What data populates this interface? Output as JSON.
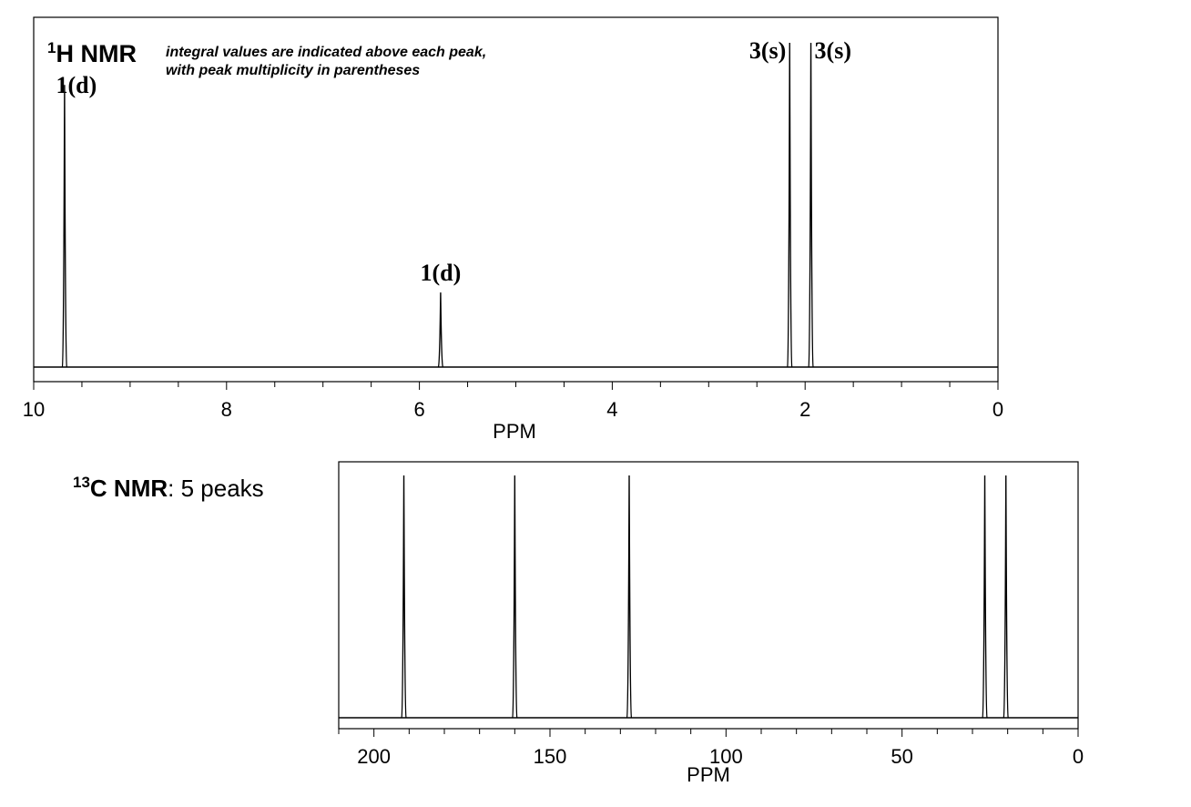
{
  "chart_data": [
    {
      "type": "line",
      "title_main": "H NMR",
      "title_sup": "1",
      "note_line1": "integral values are indicated above each peak,",
      "note_line2": "with peak multiplicity in parentheses",
      "xlabel": "PPM",
      "xlim": [
        10,
        0
      ],
      "x_ticks": [
        10,
        8,
        6,
        4,
        2,
        0
      ],
      "x_tick_labels": [
        "10",
        "8",
        "6",
        "4",
        "2",
        "0"
      ],
      "minor_tick_step": 0.5,
      "peaks": [
        {
          "ppm": 9.68,
          "height": 0.87,
          "label": "1(d)"
        },
        {
          "ppm": 5.78,
          "height": 0.23,
          "label": "1(d)"
        },
        {
          "ppm": 2.16,
          "height": 1.0,
          "label": "3(s)"
        },
        {
          "ppm": 1.94,
          "height": 1.0,
          "label": "3(s)"
        }
      ]
    },
    {
      "type": "bar",
      "title_main": "C NMR",
      "title_sup": "13",
      "title_rest": ": 5 peaks",
      "xlabel": "PPM",
      "xlim": [
        210,
        0
      ],
      "x_ticks": [
        200,
        150,
        100,
        50,
        0
      ],
      "x_tick_labels": [
        "200",
        "150",
        "100",
        "50",
        "0"
      ],
      "minor_tick_step": 10,
      "peaks": [
        {
          "ppm": 191.5,
          "height": 1.0
        },
        {
          "ppm": 160.0,
          "height": 1.0
        },
        {
          "ppm": 127.5,
          "height": 1.0
        },
        {
          "ppm": 26.5,
          "height": 1.0
        },
        {
          "ppm": 20.5,
          "height": 1.0
        }
      ]
    }
  ]
}
